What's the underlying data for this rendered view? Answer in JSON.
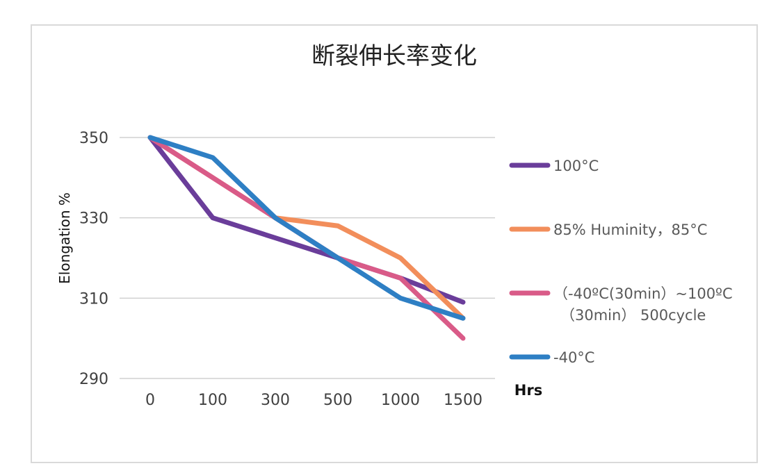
{
  "chart_data": {
    "type": "line",
    "title": "断裂伸长率变化",
    "ylabel": "Elongation %",
    "xlabel": "Hrs",
    "categories": [
      "0",
      "100",
      "300",
      "500",
      "1000",
      "1500"
    ],
    "yticks": [
      350,
      330,
      310,
      290
    ],
    "ylim": [
      290,
      350
    ],
    "grid": true,
    "legend_position": "right",
    "series": [
      {
        "name": "100°C",
        "name_line2": "",
        "color": "#6a3d9a",
        "values": [
          350,
          330,
          325,
          320,
          315,
          309
        ]
      },
      {
        "name": "85% Huminity，85°C",
        "name_line2": "",
        "color": "#f28e5b",
        "values": [
          350,
          340,
          330,
          328,
          320,
          305
        ]
      },
      {
        "name": "（-40ºC(30min）~100ºC",
        "name_line2": "（30min） 500cycle",
        "color": "#d95b88",
        "values": [
          350,
          340,
          330,
          320,
          315,
          300
        ]
      },
      {
        "name": "-40°C",
        "name_line2": "",
        "color": "#2e7fc4",
        "values": [
          350,
          345,
          330,
          320,
          310,
          305
        ]
      }
    ]
  }
}
